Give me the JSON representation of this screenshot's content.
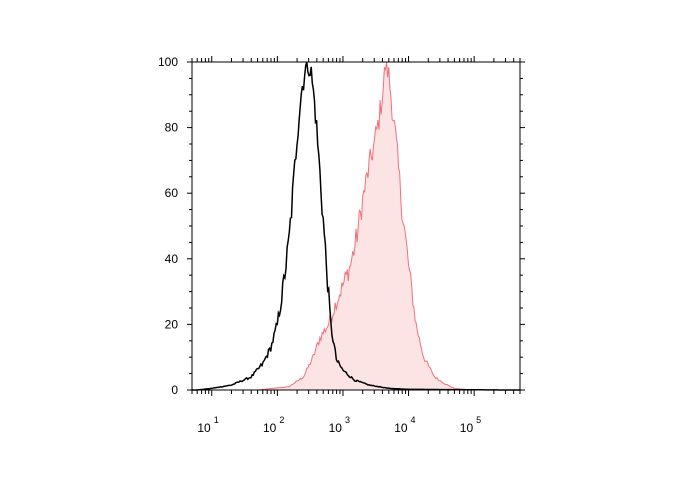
{
  "chart_data": {
    "type": "area",
    "title": "",
    "xlabel": "",
    "ylabel": "",
    "x_scale": "log",
    "xlim": [
      5,
      500000
    ],
    "ylim": [
      0,
      100
    ],
    "grid": false,
    "legend": "none",
    "y_ticks": [
      {
        "value": 0,
        "label": "0"
      },
      {
        "value": 20,
        "label": "20"
      },
      {
        "value": 40,
        "label": "40"
      },
      {
        "value": 60,
        "label": "60"
      },
      {
        "value": 80,
        "label": "80"
      },
      {
        "value": 100,
        "label": "100"
      }
    ],
    "x_ticks": [
      {
        "value": 10,
        "base": "10",
        "exp": "1"
      },
      {
        "value": 100,
        "base": "10",
        "exp": "2"
      },
      {
        "value": 1000,
        "base": "10",
        "exp": "3"
      },
      {
        "value": 10000,
        "base": "10",
        "exp": "4"
      },
      {
        "value": 100000,
        "base": "10",
        "exp": "5"
      }
    ],
    "series": [
      {
        "style": "line",
        "color": "#000000",
        "points": [
          [
            6,
            0
          ],
          [
            10,
            0.5
          ],
          [
            20,
            1.5
          ],
          [
            40,
            4
          ],
          [
            60,
            8
          ],
          [
            80,
            13
          ],
          [
            100,
            20
          ],
          [
            120,
            30
          ],
          [
            150,
            45
          ],
          [
            180,
            65
          ],
          [
            200,
            78
          ],
          [
            230,
            90
          ],
          [
            260,
            97
          ],
          [
            300,
            100
          ],
          [
            330,
            96
          ],
          [
            380,
            85
          ],
          [
            450,
            65
          ],
          [
            550,
            40
          ],
          [
            650,
            20
          ],
          [
            800,
            9
          ],
          [
            1000,
            6
          ],
          [
            1500,
            3
          ],
          [
            2500,
            1.5
          ],
          [
            5000,
            0.5
          ],
          [
            10000,
            0.2
          ],
          [
            300000,
            0
          ]
        ]
      },
      {
        "style": "filled",
        "color": "#f0707a",
        "fill": "#fde4e4",
        "points": [
          [
            6,
            0
          ],
          [
            50,
            0
          ],
          [
            150,
            1
          ],
          [
            250,
            4
          ],
          [
            350,
            10
          ],
          [
            450,
            16
          ],
          [
            600,
            20
          ],
          [
            800,
            27
          ],
          [
            1000,
            32
          ],
          [
            1300,
            38
          ],
          [
            1600,
            46
          ],
          [
            2000,
            58
          ],
          [
            2500,
            68
          ],
          [
            3000,
            75
          ],
          [
            3500,
            82
          ],
          [
            4000,
            90
          ],
          [
            4500,
            100
          ],
          [
            5000,
            96
          ],
          [
            5500,
            88
          ],
          [
            6500,
            75
          ],
          [
            8000,
            55
          ],
          [
            10000,
            38
          ],
          [
            13000,
            20
          ],
          [
            17000,
            10
          ],
          [
            25000,
            4
          ],
          [
            35000,
            2
          ],
          [
            50000,
            0.5
          ],
          [
            100000,
            0
          ],
          [
            300000,
            0
          ]
        ]
      }
    ]
  }
}
